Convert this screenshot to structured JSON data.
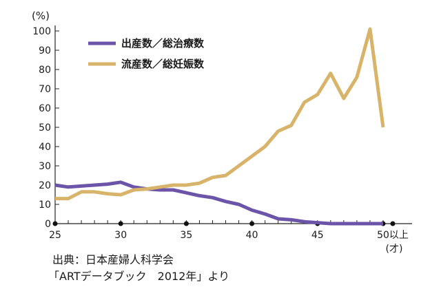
{
  "chart_data": {
    "type": "line",
    "unit": "(%)",
    "xlim": [
      25,
      50
    ],
    "ylim": [
      0,
      100
    ],
    "x_tick_labels": [
      "25",
      "30",
      "35",
      "40",
      "45",
      "50以上",
      "(才)"
    ],
    "y_ticks": [
      0,
      10,
      20,
      30,
      40,
      50,
      60,
      70,
      80,
      90,
      100
    ],
    "grid": false,
    "legend_position": "top-left",
    "x": [
      25,
      26,
      27,
      28,
      29,
      30,
      31,
      32,
      33,
      34,
      35,
      36,
      37,
      38,
      39,
      40,
      41,
      42,
      43,
      44,
      45,
      46,
      47,
      48,
      49,
      50
    ],
    "series": [
      {
        "name": "出産数／総治療数",
        "color": "#6c55a8",
        "values": [
          20,
          19,
          19.5,
          20,
          20.5,
          21.5,
          19,
          18,
          17.5,
          17.5,
          16,
          14.5,
          13.5,
          11.5,
          10,
          7,
          5,
          2.5,
          2,
          1,
          0.5,
          0,
          0,
          0,
          0,
          0
        ]
      },
      {
        "name": "流産数／総妊娠数",
        "color": "#d8b36a",
        "values": [
          13,
          13,
          16.5,
          16.5,
          15.5,
          15,
          17.5,
          18,
          19,
          20,
          20,
          21,
          24,
          25,
          30,
          35,
          40,
          48,
          51,
          63,
          67,
          78,
          65,
          76,
          101,
          50
        ]
      }
    ]
  },
  "source": {
    "line1": "出典：日本産婦人科学会",
    "line2": "「ARTデータブック　2012年」より"
  }
}
